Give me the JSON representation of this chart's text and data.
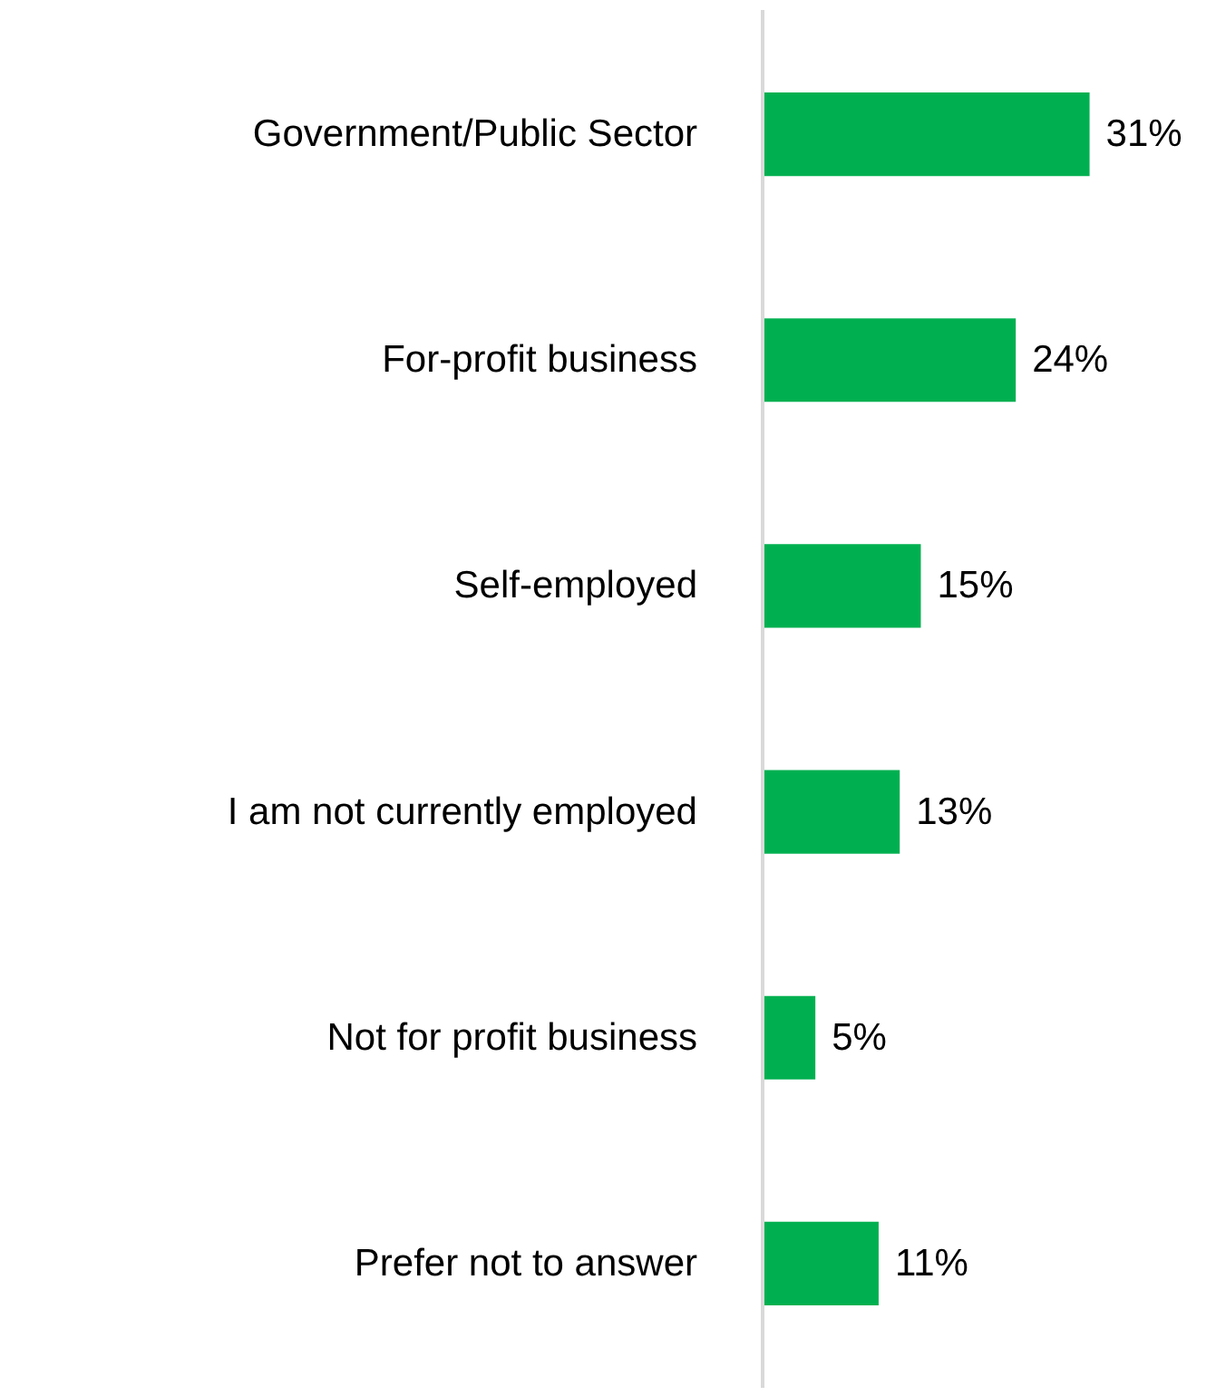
{
  "chart_data": {
    "type": "bar",
    "orientation": "horizontal",
    "categories": [
      "Government/Public Sector",
      "For-profit business",
      "Self-employed",
      "I am not currently employed",
      "Not for profit business",
      "Prefer not to answer"
    ],
    "values": [
      31,
      24,
      15,
      13,
      5,
      11
    ],
    "value_labels": [
      "31%",
      "24%",
      "15%",
      "13%",
      "5%",
      "11%"
    ],
    "color": "#00b050"
  }
}
